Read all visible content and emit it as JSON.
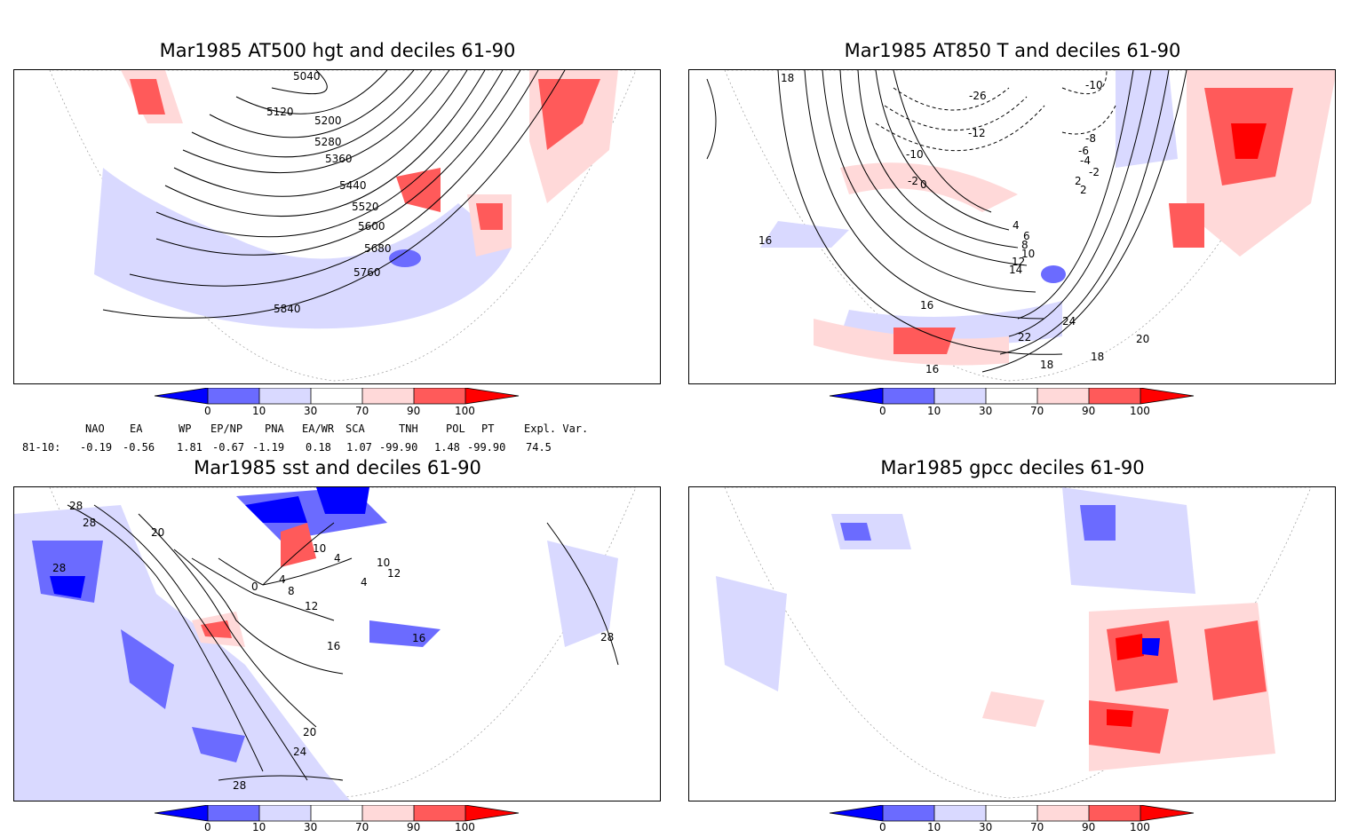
{
  "panels": [
    {
      "id": "p1",
      "title": "Mar1985 AT500 hgt and deciles 61-90",
      "contour_labels": [
        "5040",
        "5120",
        "5200",
        "5280",
        "5360",
        "5440",
        "5520",
        "5600",
        "5680",
        "5760",
        "5840"
      ]
    },
    {
      "id": "p2",
      "title": "Mar1985 AT850 T and deciles 61-90",
      "contour_labels": [
        "18",
        "16",
        "-26",
        "-10",
        "-12",
        "-8",
        "-6",
        "-4",
        "-2",
        "0",
        "2",
        "4",
        "6",
        "8",
        "10",
        "12",
        "14",
        "16",
        "18",
        "20",
        "22",
        "24",
        "18",
        "16",
        "-10",
        "-2",
        "2"
      ]
    },
    {
      "id": "p3",
      "title": "Mar1985 sst and deciles 61-90",
      "contour_labels": [
        "28",
        "28",
        "20",
        "28",
        "0",
        "4",
        "8",
        "12",
        "16",
        "20",
        "24",
        "28",
        "10",
        "4",
        "10",
        "12",
        "16",
        "28",
        "4"
      ]
    },
    {
      "id": "p4",
      "title": "Mar1985 gpcc deciles 61-90",
      "contour_labels": []
    }
  ],
  "colorbar": {
    "ticks": [
      "0",
      "10",
      "30",
      "70",
      "90",
      "100"
    ],
    "colors": [
      "#0000ff",
      "#6b6bff",
      "#d9d9ff",
      "#ffffff",
      "#ffd9d9",
      "#ff5a5a",
      "#ff0000"
    ]
  },
  "indices": {
    "headers": [
      "NAO",
      "EA",
      "WP",
      "EP/NP",
      "PNA",
      "EA/WR",
      "SCA",
      "TNH",
      "POL",
      "PT",
      "Expl. Var."
    ],
    "row_label": "81-10:",
    "values": [
      "-0.19",
      "-0.56",
      "1.81",
      "-0.67",
      "-1.19",
      "0.18",
      "1.07",
      "-99.90",
      "1.48",
      "-99.90",
      "74.5"
    ]
  }
}
